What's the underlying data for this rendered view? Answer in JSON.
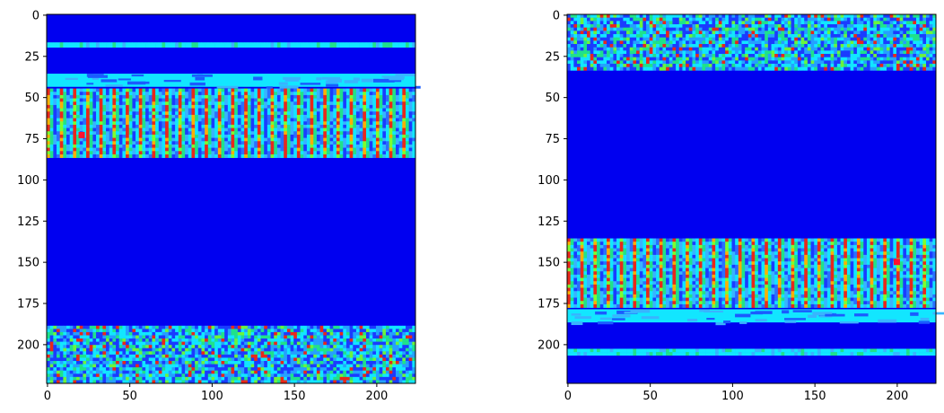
{
  "chart_data": [
    {
      "type": "heatmap",
      "title": "",
      "xlabel": "",
      "ylabel": "",
      "colormap": "jet",
      "xlim": [
        0,
        224
      ],
      "ylim": [
        224,
        0
      ],
      "xticks": [
        0,
        50,
        100,
        150,
        200
      ],
      "yticks": [
        0,
        25,
        50,
        75,
        100,
        125,
        150,
        175,
        200
      ],
      "grid": false,
      "bands": [
        {
          "y_start": 17,
          "y_end": 20,
          "pattern": "sparse-line"
        },
        {
          "y_start": 36,
          "y_end": 44,
          "pattern": "cyan-stripe"
        },
        {
          "y_start": 45,
          "y_end": 87,
          "pattern": "vertical-stripes"
        },
        {
          "y_start": 189,
          "y_end": 224,
          "pattern": "noise"
        }
      ],
      "hotspot": {
        "x": 21,
        "y": 73
      }
    },
    {
      "type": "heatmap",
      "title": "",
      "xlabel": "",
      "ylabel": "",
      "colormap": "jet",
      "xlim": [
        0,
        224
      ],
      "ylim": [
        224,
        0
      ],
      "xticks": [
        0,
        50,
        100,
        150,
        200
      ],
      "yticks": [
        0,
        25,
        50,
        75,
        100,
        125,
        150,
        175,
        200
      ],
      "grid": false,
      "bands": [
        {
          "y_start": 0,
          "y_end": 34,
          "pattern": "noise"
        },
        {
          "y_start": 136,
          "y_end": 178,
          "pattern": "vertical-stripes"
        },
        {
          "y_start": 179,
          "y_end": 187,
          "pattern": "cyan-stripe"
        },
        {
          "y_start": 203,
          "y_end": 207,
          "pattern": "sparse-line"
        }
      ],
      "hotspot": {
        "x": 200,
        "y": 150
      }
    }
  ]
}
